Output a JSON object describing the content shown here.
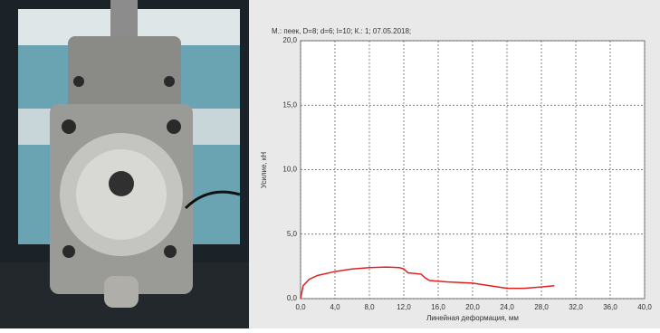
{
  "chart_data": {
    "type": "line",
    "title": "М.: пеек, D=8; d=6; l=10; К.: 1; 07.05.2018;",
    "x_label": "Линейная деформация, мм",
    "y_label": "Усилие, кН",
    "x": [
      0,
      0.3,
      1,
      2,
      4,
      6,
      8,
      10,
      11.5,
      12,
      12.5,
      14,
      14.5,
      15,
      17,
      20,
      22,
      24,
      26,
      28,
      29.5
    ],
    "values": [
      0,
      1.0,
      1.5,
      1.8,
      2.1,
      2.3,
      2.4,
      2.45,
      2.4,
      2.3,
      2.0,
      1.9,
      1.6,
      1.4,
      1.3,
      1.2,
      1.0,
      0.8,
      0.8,
      0.9,
      1.0
    ],
    "color": "#e02020",
    "xlim": [
      0,
      40
    ],
    "ylim": [
      0,
      20
    ],
    "xticks": [
      {
        "value": 0,
        "label": "0,0"
      },
      {
        "value": 4,
        "label": "4,0"
      },
      {
        "value": 8,
        "label": "8,0"
      },
      {
        "value": 12,
        "label": "12,0"
      },
      {
        "value": 16,
        "label": "16,0"
      },
      {
        "value": 20,
        "label": "20,0"
      },
      {
        "value": 24,
        "label": "24,0"
      },
      {
        "value": 28,
        "label": "28,0"
      },
      {
        "value": 32,
        "label": "32,0"
      },
      {
        "value": 36,
        "label": "36,0"
      },
      {
        "value": 40,
        "label": "40,0"
      }
    ],
    "yticks": [
      {
        "value": 0,
        "label": "0,0"
      },
      {
        "value": 5,
        "label": "5,0"
      },
      {
        "value": 10,
        "label": "10,0"
      },
      {
        "value": 15,
        "label": "15,0"
      },
      {
        "value": 20,
        "label": "20,0"
      }
    ],
    "grid": true
  }
}
